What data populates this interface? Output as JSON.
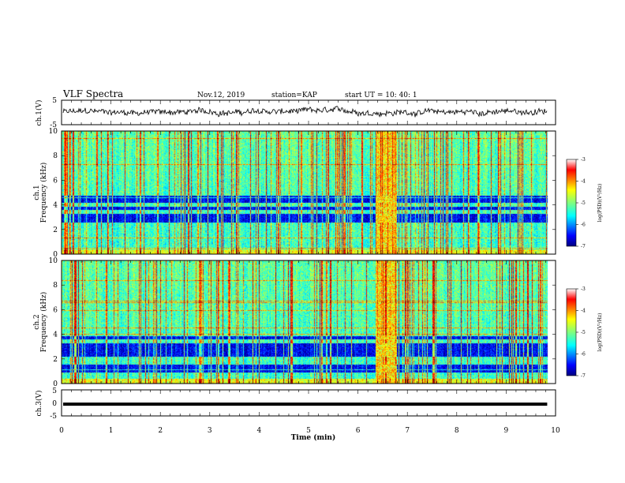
{
  "header": {
    "title": "VLF Spectra",
    "date": "Nov.12, 2019",
    "station": "station=KAP",
    "start": "start  UT =   10: 40: 1"
  },
  "chart_data": [
    {
      "type": "line",
      "name": "ch1-waveform",
      "ylabel": "ch.1(V)",
      "ylim": [
        -5,
        5
      ],
      "yticks": [
        "5",
        "-5"
      ],
      "xlim": [
        0,
        10
      ],
      "x_end": 9.83,
      "mean": 0.2,
      "amplitude": 2.2
    },
    {
      "type": "heatmap",
      "name": "ch1-spectrogram",
      "ylabel": "ch.1",
      "ylabel2": "Frequency (kHz)",
      "ylim": [
        0,
        10
      ],
      "yticks": [
        "0",
        "2",
        "4",
        "6",
        "8",
        "10"
      ],
      "xlim": [
        0,
        10
      ],
      "x_end": 9.83,
      "burst_interval": [
        6.35,
        6.78
      ],
      "dark_bands_khz": [
        [
          2.6,
          3.3
        ],
        [
          3.6,
          3.9
        ],
        [
          4.2,
          4.8
        ]
      ],
      "colorbar": {
        "label": "log(PSD)(V²/Hz)",
        "ticks": [
          "-3",
          "-4",
          "-5",
          "-6",
          "-7"
        ],
        "range": [
          -7,
          -3
        ]
      }
    },
    {
      "type": "heatmap",
      "name": "ch2-spectrogram",
      "ylabel": "ch.2",
      "ylabel2": "Frequency (kHz)",
      "ylim": [
        0,
        10
      ],
      "yticks": [
        "0",
        "2",
        "4",
        "6",
        "8",
        "10"
      ],
      "xlim": [
        0,
        10
      ],
      "x_end": 9.83,
      "burst_interval": [
        6.35,
        6.78
      ],
      "dark_bands_khz": [
        [
          2.2,
          3.3
        ],
        [
          3.6,
          3.9
        ],
        [
          0.9,
          1.6
        ]
      ],
      "colorbar": {
        "label": "log(PSD)(V²/Hz)",
        "ticks": [
          "-3",
          "-4",
          "-5",
          "-6",
          "-7"
        ],
        "range": [
          -7,
          -3
        ]
      }
    },
    {
      "type": "line",
      "name": "ch3-waveform",
      "ylabel": "ch.3(V)",
      "ylim": [
        -5,
        5
      ],
      "yticks": [
        "5",
        "0",
        "-5"
      ],
      "xlim": [
        0,
        10
      ],
      "xticks": [
        "0",
        "1",
        "2",
        "3",
        "4",
        "5",
        "6",
        "7",
        "8",
        "9",
        "10"
      ],
      "xlabel": "Time (min)",
      "x_end": 9.83,
      "level": -0.5
    }
  ]
}
